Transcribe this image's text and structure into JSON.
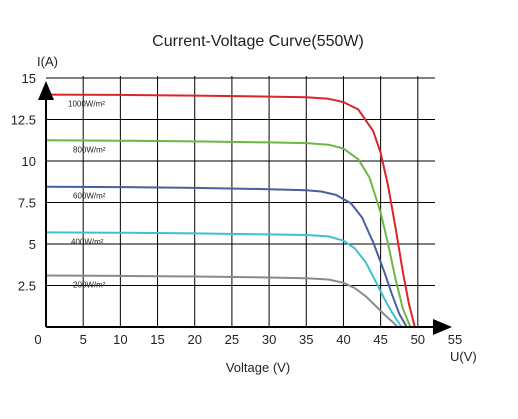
{
  "chart_data": {
    "type": "line",
    "title": "Current-Voltage Curve(550W)",
    "xlabel": "Voltage (V)",
    "ylabel": "I(A)",
    "x_unit_label": "U(V)",
    "xlim": [
      0,
      55
    ],
    "ylim": [
      0,
      15
    ],
    "x_ticks": [
      "0",
      "5",
      "10",
      "15",
      "20",
      "25",
      "30",
      "35",
      "40",
      "45",
      "50",
      "55"
    ],
    "y_ticks": [
      "2.5",
      "5",
      "7.5",
      "10",
      "12.5",
      "15"
    ],
    "grid": true,
    "legend": "inline labels",
    "series": [
      {
        "name": "1000W/m²",
        "color": "#d9252b",
        "x": [
          0,
          10,
          20,
          30,
          35,
          38,
          40,
          42,
          44,
          45,
          46,
          47,
          48,
          48.8,
          49.6
        ],
        "y": [
          14.0,
          13.98,
          13.94,
          13.88,
          13.84,
          13.75,
          13.55,
          13.1,
          11.8,
          10.5,
          8.5,
          6.0,
          3.3,
          1.4,
          0
        ]
      },
      {
        "name": "800W/m²",
        "color": "#6fb745",
        "x": [
          0,
          10,
          20,
          30,
          35,
          38,
          40,
          42,
          43.5,
          45,
          46,
          47,
          48,
          49.0
        ],
        "y": [
          11.25,
          11.22,
          11.18,
          11.12,
          11.08,
          10.98,
          10.75,
          10.1,
          9.0,
          6.9,
          5.0,
          2.9,
          1.1,
          0
        ]
      },
      {
        "name": "600W/m²",
        "color": "#4a5fa0",
        "x": [
          0,
          10,
          20,
          30,
          35,
          37,
          39,
          41,
          42.5,
          44,
          45.5,
          46.5,
          47.5,
          48.5
        ],
        "y": [
          8.45,
          8.43,
          8.38,
          8.3,
          8.24,
          8.16,
          7.96,
          7.45,
          6.6,
          5.1,
          3.3,
          2.0,
          0.8,
          0
        ]
      },
      {
        "name": "400W/m²",
        "color": "#3dc1d0",
        "x": [
          0,
          10,
          20,
          30,
          35,
          38,
          40,
          41.5,
          43,
          44.5,
          45.5,
          46.5,
          47.8
        ],
        "y": [
          5.7,
          5.68,
          5.64,
          5.58,
          5.54,
          5.46,
          5.2,
          4.75,
          3.9,
          2.6,
          1.7,
          0.9,
          0
        ]
      },
      {
        "name": "200W/m²",
        "color": "#8a8a8a",
        "x": [
          0,
          10,
          20,
          30,
          35,
          38,
          40,
          41.5,
          43,
          44.5,
          45.5,
          46.5,
          47.3
        ],
        "y": [
          3.1,
          3.08,
          3.04,
          2.98,
          2.94,
          2.86,
          2.66,
          2.35,
          1.85,
          1.2,
          0.75,
          0.35,
          0
        ]
      }
    ]
  }
}
